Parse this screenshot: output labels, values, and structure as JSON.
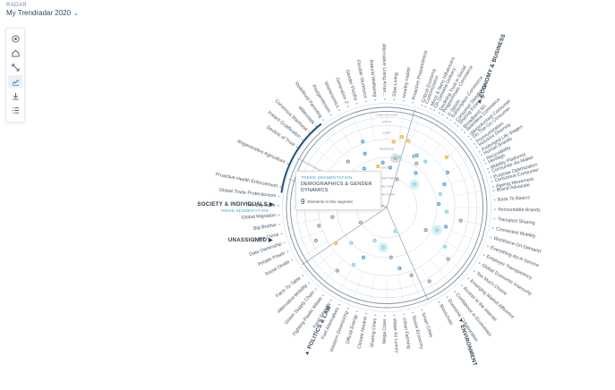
{
  "header": {
    "section_label": "RADAR",
    "title": "My Trendradar 2020",
    "dropdown_icon": "chevron-down-icon"
  },
  "toolbar": {
    "tools": [
      {
        "name": "focus-tool",
        "icon": "target-icon"
      },
      {
        "name": "home-tool",
        "icon": "home-icon"
      },
      {
        "name": "expand-tool",
        "icon": "expand-icon"
      },
      {
        "name": "chart-tool",
        "icon": "chart-icon",
        "active": true
      },
      {
        "name": "download-tool",
        "icon": "download-icon"
      },
      {
        "name": "list-tool",
        "icon": "list-icon"
      }
    ]
  },
  "colors": {
    "ring": "#c9d6e2",
    "ring_dark": "#7d8fa3",
    "label": "#4a5666",
    "dot_yellow": "#f0b43a",
    "dot_blue": "#5ba3dc",
    "dot_teal": "#7fd3e0",
    "dot_gray": "#9aa1aa",
    "segment_highlight": "#1f4e79",
    "accent_sub": "#3aa0c8"
  },
  "ring_labels": {
    "top": [
      "GAME CHANGER",
      "WATCH",
      "ALERT",
      "IMMEDIATE",
      "CRITICAL"
    ],
    "inner": [
      "LONG-TERM",
      "MID-TERM",
      "SHORT-TERM"
    ]
  },
  "sectors": [
    {
      "label": "ECONOMY & BUSINESS",
      "pos": "top-right"
    },
    {
      "label": "ENVIRONMENT",
      "pos": "bottom-right"
    },
    {
      "label": "POLITICS & LAW",
      "pos": "bottom-left"
    },
    {
      "label": "UNASSIGNED",
      "pos": "left"
    },
    {
      "label": "SOCIETY & INDIVIDUALS",
      "pos": "left",
      "sub": "TREND SEGMENTATION"
    }
  ],
  "trend_labels": [
    {
      "text": "Customization",
      "angle": -69
    },
    {
      "text": "On Demand Delivery",
      "angle": -64
    },
    {
      "text": "Programmatic Commerce",
      "angle": -59
    },
    {
      "text": "Subscription Commerce",
      "angle": -54
    },
    {
      "text": "Sharing Economy",
      "angle": -49
    },
    {
      "text": "Seamless Commerce",
      "angle": -44
    },
    {
      "text": "On-The-Go Consumer",
      "angle": -39
    },
    {
      "text": "Inclusive Diversity",
      "angle": -34
    },
    {
      "text": "Human Brands",
      "angle": -29
    },
    {
      "text": "Heritage",
      "angle": -24
    },
    {
      "text": "Consumer-As-Maker",
      "angle": -19
    },
    {
      "text": "Conscious Consumer",
      "angle": -14
    },
    {
      "text": "Brand Advocate",
      "angle": -9
    },
    {
      "text": "Back To Basics",
      "angle": -4
    },
    {
      "text": "Accountable Brands",
      "angle": 1
    },
    {
      "text": "Transport Sharing",
      "angle": 6
    },
    {
      "text": "Connected Mobility",
      "angle": 11
    },
    {
      "text": "Workforce-On-Demand",
      "angle": 16
    },
    {
      "text": "Everything-As-A-Service",
      "angle": 21
    },
    {
      "text": "Employer Transparency",
      "angle": 26
    },
    {
      "text": "Global Economic Insecurity",
      "angle": 31
    },
    {
      "text": "Too Much Choice",
      "angle": 36
    },
    {
      "text": "Emerging Market Affluence",
      "angle": 41
    },
    {
      "text": "Access to the Internet",
      "angle": 46
    },
    {
      "text": "Confidence in Economies",
      "angle": 51
    },
    {
      "text": "Economic Collaboration",
      "angle": 56
    },
    {
      "text": "Blockchain",
      "angle": 61
    },
    {
      "text": "Smart Cities",
      "angle": 71
    },
    {
      "text": "Space Economy",
      "angle": 76
    },
    {
      "text": "Urban Farming",
      "angle": 81
    },
    {
      "text": "Water As Luxury",
      "angle": 86
    },
    {
      "text": "Mega Cities",
      "angle": 91
    },
    {
      "text": "Sharing Cities",
      "angle": 96
    },
    {
      "text": "Climate Neutral",
      "angle": 101
    },
    {
      "text": "Official Energy",
      "angle": 106
    },
    {
      "text": "Western Downsizing",
      "angle": 111
    },
    {
      "text": "Fuel Alternatives",
      "angle": 116
    },
    {
      "text": "Food Security",
      "angle": 121
    },
    {
      "text": "Fighting Plastic Waste",
      "angle": 126
    },
    {
      "text": "Green Supply Chain",
      "angle": 131
    },
    {
      "text": "Alternative Mobility",
      "angle": 136
    },
    {
      "text": "Farm-To-Table",
      "angle": 141
    },
    {
      "text": "Social Divide",
      "angle": 151
    },
    {
      "text": "People Power",
      "angle": 156
    },
    {
      "text": "Data Ownership",
      "angle": 161
    },
    {
      "text": "Cyber Crime",
      "angle": 166
    },
    {
      "text": "Big Brother",
      "angle": 171
    },
    {
      "text": "Global Migration",
      "angle": 176
    },
    {
      "text": "The City State",
      "angle": 181
    },
    {
      "text": "Global Trade Protectionism",
      "angle": 186
    },
    {
      "text": "Proactive Health Enforcement",
      "angle": 191
    },
    {
      "text": "Regenerative Agriculture",
      "angle": 204
    },
    {
      "text": "Decline of Trust",
      "angle": 214
    },
    {
      "text": "Instant Gratification",
      "angle": 219
    },
    {
      "text": "Conscious Manhood",
      "angle": 224
    },
    {
      "text": "Millennials",
      "angle": 229
    },
    {
      "text": "Redefined Parenting",
      "angle": 234
    },
    {
      "text": "Postgenderism",
      "angle": 239
    },
    {
      "text": "Womenomics",
      "angle": 244
    },
    {
      "text": "Generation Z",
      "angle": 249
    },
    {
      "text": "Gender Fluidity",
      "angle": 254
    },
    {
      "text": "Flexible Workforce",
      "angle": 259
    },
    {
      "text": "Natural Wellbeing",
      "angle": 264
    },
    {
      "text": "Alternative Living Arran...",
      "angle": 269
    },
    {
      "text": "Slow Living",
      "angle": 274
    },
    {
      "text": "Healthy Habits",
      "angle": 279
    },
    {
      "text": "Proactive Preparedness",
      "angle": 284
    },
    {
      "text": "Critical Economy",
      "angle": 289
    },
    {
      "text": "Micro & Nano Influencers",
      "angle": 294
    },
    {
      "text": "Declining Trust in Social",
      "angle": 299
    },
    {
      "text": "E-Sports",
      "angle": 304
    },
    {
      "text": "Consumer Skepticism",
      "angle": 309
    },
    {
      "text": "Broadband 5G",
      "angle": 314
    },
    {
      "text": "(Mis)informed Consumer",
      "angle": 319
    },
    {
      "text": "Premiumization",
      "angle": 324
    },
    {
      "text": "Prolonged Life Stages",
      "angle": 329
    },
    {
      "text": "Recyclability",
      "angle": 334
    },
    {
      "text": "Mobility Platforms",
      "angle": 339
    },
    {
      "text": "Purpose Optimization",
      "angle": 344
    },
    {
      "text": "Ageing Movement",
      "angle": 349
    }
  ],
  "dots": [
    {
      "r": 0.72,
      "a": -78,
      "c": "yellow"
    },
    {
      "r": 0.7,
      "a": -72,
      "c": "yellow"
    },
    {
      "r": 0.66,
      "a": -84,
      "c": "yellow"
    },
    {
      "r": 0.5,
      "a": -80,
      "c": "gray",
      "big": true
    },
    {
      "r": 0.45,
      "a": -95,
      "c": "blue"
    },
    {
      "r": 0.58,
      "a": -62,
      "c": "gray"
    },
    {
      "r": 0.53,
      "a": -56,
      "c": "gray"
    },
    {
      "r": 0.6,
      "a": -50,
      "c": "teal"
    },
    {
      "r": 0.78,
      "a": -40,
      "c": "yellow"
    },
    {
      "r": 0.7,
      "a": -30,
      "c": "blue"
    },
    {
      "r": 0.62,
      "a": -22,
      "c": "blue"
    },
    {
      "r": 0.55,
      "a": -14,
      "c": "teal"
    },
    {
      "r": 0.52,
      "a": -4,
      "c": "blue"
    },
    {
      "r": 0.6,
      "a": 4,
      "c": "teal"
    },
    {
      "r": 0.75,
      "a": 10,
      "c": "gray"
    },
    {
      "r": 0.62,
      "a": 18,
      "c": "blue"
    },
    {
      "r": 0.55,
      "a": 24,
      "c": "teal",
      "big": true
    },
    {
      "r": 0.45,
      "a": 30,
      "c": "gray"
    },
    {
      "r": 0.7,
      "a": 34,
      "c": "teal"
    },
    {
      "r": 0.8,
      "a": 40,
      "c": "gray"
    },
    {
      "r": 0.85,
      "a": 60,
      "c": "gray"
    },
    {
      "r": 0.72,
      "a": 70,
      "c": "gray"
    },
    {
      "r": 0.62,
      "a": 78,
      "c": "blue"
    },
    {
      "r": 0.5,
      "a": 85,
      "c": "gray"
    },
    {
      "r": 0.4,
      "a": 95,
      "c": "teal",
      "big": true
    },
    {
      "r": 0.25,
      "a": 70,
      "c": "teal"
    },
    {
      "r": 0.35,
      "a": 110,
      "c": "teal"
    },
    {
      "r": 0.55,
      "a": 115,
      "c": "blue"
    },
    {
      "r": 0.66,
      "a": 120,
      "c": "teal"
    },
    {
      "r": 0.8,
      "a": 128,
      "c": "gray"
    },
    {
      "r": 0.5,
      "a": 135,
      "c": "teal"
    },
    {
      "r": 0.62,
      "a": 145,
      "c": "yellow"
    },
    {
      "r": 0.78,
      "a": 155,
      "c": "gray"
    },
    {
      "r": 0.55,
      "a": 170,
      "c": "gray"
    },
    {
      "r": 0.7,
      "a": 165,
      "c": "gray"
    },
    {
      "r": 0.45,
      "a": 182,
      "c": "gray"
    },
    {
      "r": 0.3,
      "a": 150,
      "c": "gray"
    },
    {
      "r": 0.6,
      "a": 230,
      "c": "gray"
    },
    {
      "r": 0.5,
      "a": 215,
      "c": "yellow"
    },
    {
      "r": 0.45,
      "a": 240,
      "c": "blue"
    },
    {
      "r": 0.58,
      "a": 248,
      "c": "blue"
    },
    {
      "r": 0.42,
      "a": 258,
      "c": "yellow"
    },
    {
      "r": 0.7,
      "a": 250,
      "c": "blue"
    },
    {
      "r": 0.2,
      "a": 200,
      "c": "gray",
      "big": true
    },
    {
      "r": 0.4,
      "a": 275,
      "c": "blue"
    },
    {
      "r": 0.52,
      "a": 285,
      "c": "teal"
    },
    {
      "r": 0.3,
      "a": 290,
      "c": "gray"
    },
    {
      "r": 0.6,
      "a": 300,
      "c": "blue"
    },
    {
      "r": 0.45,
      "a": 310,
      "c": "blue"
    },
    {
      "r": 0.36,
      "a": 320,
      "c": "teal",
      "big": true
    },
    {
      "r": 0.25,
      "a": 250,
      "c": "gray"
    }
  ],
  "tooltip": {
    "subtitle": "TREND SEGMENTATION",
    "title": "DEMOGRAPHICS & GENDER DYNAMICS",
    "count": "9",
    "count_label": "Elements in this segment"
  }
}
